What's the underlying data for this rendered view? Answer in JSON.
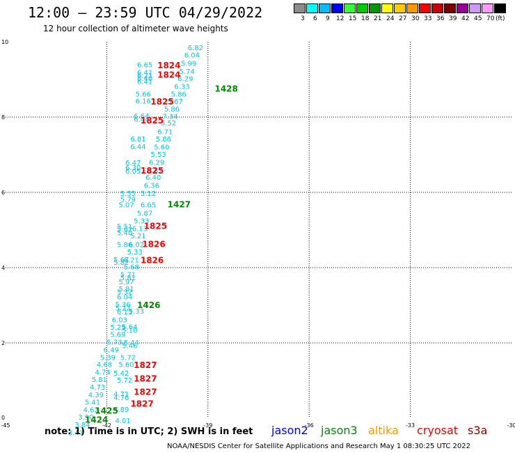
{
  "title": "12:00 — 23:59 UTC 04/29/2022",
  "subtitle": "12 hour collection of altimeter wave heights",
  "legend": {
    "unit": "(ft)",
    "bins": [
      {
        "label": "3",
        "color": "#8c8c8c"
      },
      {
        "label": "6",
        "color": "#00ffff"
      },
      {
        "label": "9",
        "color": "#00bfff"
      },
      {
        "label": "12",
        "color": "#0000ff"
      },
      {
        "label": "15",
        "color": "#33ff33"
      },
      {
        "label": "18",
        "color": "#00cc00"
      },
      {
        "label": "21",
        "color": "#009900"
      },
      {
        "label": "24",
        "color": "#ffff00"
      },
      {
        "label": "27",
        "color": "#ffcc00"
      },
      {
        "label": "30",
        "color": "#ff9900"
      },
      {
        "label": "33",
        "color": "#ff0000"
      },
      {
        "label": "36",
        "color": "#cc0000"
      },
      {
        "label": "39",
        "color": "#800000"
      },
      {
        "label": "42",
        "color": "#990099"
      },
      {
        "label": "45",
        "color": "#cc99ff"
      },
      {
        "label": "70",
        "color": "#ff99ff"
      },
      {
        "label": "",
        "color": "#000000"
      }
    ]
  },
  "axes": {
    "x_ticks": [
      "-45",
      "-42",
      "-39",
      "-36",
      "-33",
      "-30"
    ],
    "x_values": [
      -45,
      -42,
      -39,
      -36,
      -33,
      -30
    ],
    "y_ticks": [
      "0",
      "2",
      "4",
      "6",
      "8",
      "10"
    ],
    "y_values": [
      0,
      2,
      4,
      6,
      8,
      10
    ],
    "xlim": [
      -45,
      -30
    ],
    "ylim": [
      0,
      10
    ]
  },
  "colors": {
    "obs": "#00c8e0",
    "cryosat": "#ff0000",
    "jason3": "#008800"
  },
  "observations": [
    {
      "lon": -39.6,
      "lat": 9.78,
      "v": "6.82"
    },
    {
      "lon": -39.7,
      "lat": 9.58,
      "v": "6.04"
    },
    {
      "lon": -39.8,
      "lat": 9.36,
      "v": "5.99"
    },
    {
      "lon": -41.1,
      "lat": 9.32,
      "v": "6.65"
    },
    {
      "lon": -39.85,
      "lat": 9.15,
      "v": "5.74"
    },
    {
      "lon": -41.1,
      "lat": 9.12,
      "v": "6.41"
    },
    {
      "lon": -41.1,
      "lat": 9.04,
      "v": "6.21"
    },
    {
      "lon": -41.1,
      "lat": 8.96,
      "v": "6.40"
    },
    {
      "lon": -39.9,
      "lat": 8.95,
      "v": "6.29"
    },
    {
      "lon": -41.1,
      "lat": 8.88,
      "v": "6.41"
    },
    {
      "lon": -40.0,
      "lat": 8.75,
      "v": "6.33"
    },
    {
      "lon": -41.15,
      "lat": 8.55,
      "v": "5.66"
    },
    {
      "lon": -40.1,
      "lat": 8.55,
      "v": "5.86"
    },
    {
      "lon": -40.2,
      "lat": 8.35,
      "v": "5.67"
    },
    {
      "lon": -41.15,
      "lat": 8.36,
      "v": "6.16"
    },
    {
      "lon": -40.3,
      "lat": 8.15,
      "v": "5.86"
    },
    {
      "lon": -41.2,
      "lat": 7.96,
      "v": "6.64"
    },
    {
      "lon": -40.35,
      "lat": 7.95,
      "v": "7.34"
    },
    {
      "lon": -41.2,
      "lat": 7.88,
      "v": "6.44"
    },
    {
      "lon": -40.4,
      "lat": 7.78,
      "v": "5.52"
    },
    {
      "lon": -40.5,
      "lat": 7.55,
      "v": "6.71"
    },
    {
      "lon": -41.3,
      "lat": 7.35,
      "v": "6.81"
    },
    {
      "lon": -40.55,
      "lat": 7.35,
      "v": "5.86"
    },
    {
      "lon": -41.3,
      "lat": 7.15,
      "v": "6.44"
    },
    {
      "lon": -40.6,
      "lat": 7.14,
      "v": "5.60"
    },
    {
      "lon": -40.7,
      "lat": 6.94,
      "v": "5.53"
    },
    {
      "lon": -41.45,
      "lat": 6.72,
      "v": "6.47"
    },
    {
      "lon": -40.75,
      "lat": 6.73,
      "v": "6.29"
    },
    {
      "lon": -41.45,
      "lat": 6.59,
      "v": "6.30"
    },
    {
      "lon": -40.8,
      "lat": 6.53,
      "v": "5.87"
    },
    {
      "lon": -41.45,
      "lat": 6.5,
      "v": "6.05"
    },
    {
      "lon": -40.85,
      "lat": 6.33,
      "v": "6.40"
    },
    {
      "lon": -40.9,
      "lat": 6.12,
      "v": "6.36"
    },
    {
      "lon": -41.6,
      "lat": 5.91,
      "v": "5.55"
    },
    {
      "lon": -41.0,
      "lat": 5.91,
      "v": "5.12"
    },
    {
      "lon": -41.6,
      "lat": 5.75,
      "v": "5.79"
    },
    {
      "lon": -41.65,
      "lat": 5.6,
      "v": "5.07"
    },
    {
      "lon": -41.0,
      "lat": 5.6,
      "v": "6.65"
    },
    {
      "lon": -41.1,
      "lat": 5.38,
      "v": "5.87"
    },
    {
      "lon": -41.2,
      "lat": 5.18,
      "v": "5.33"
    },
    {
      "lon": -41.7,
      "lat": 5.03,
      "v": "5.51"
    },
    {
      "lon": -41.25,
      "lat": 4.97,
      "v": "6.13"
    },
    {
      "lon": -41.7,
      "lat": 4.95,
      "v": "5.62"
    },
    {
      "lon": -41.7,
      "lat": 4.86,
      "v": "5.40"
    },
    {
      "lon": -41.3,
      "lat": 4.78,
      "v": "5.21"
    },
    {
      "lon": -41.7,
      "lat": 4.55,
      "v": "5.86"
    },
    {
      "lon": -41.35,
      "lat": 4.55,
      "v": "6.02"
    },
    {
      "lon": -41.4,
      "lat": 4.35,
      "v": "5.33"
    },
    {
      "lon": -41.8,
      "lat": 4.15,
      "v": "5.67"
    },
    {
      "lon": -41.8,
      "lat": 4.07,
      "v": "5.82"
    },
    {
      "lon": -41.5,
      "lat": 4.14,
      "v": "6.21"
    },
    {
      "lon": -41.5,
      "lat": 3.95,
      "v": "5.68"
    },
    {
      "lon": -41.6,
      "lat": 3.75,
      "v": "5.71"
    },
    {
      "lon": -41.6,
      "lat": 3.67,
      "v": "5.81"
    },
    {
      "lon": -41.65,
      "lat": 3.56,
      "v": "5.97"
    },
    {
      "lon": -41.65,
      "lat": 3.37,
      "v": "5.81"
    },
    {
      "lon": -41.7,
      "lat": 3.29,
      "v": "5.32"
    },
    {
      "lon": -41.7,
      "lat": 3.16,
      "v": "6.04"
    },
    {
      "lon": -41.75,
      "lat": 2.95,
      "v": "5.36"
    },
    {
      "lon": -41.75,
      "lat": 2.86,
      "v": "5.22"
    },
    {
      "lon": -41.7,
      "lat": 2.76,
      "v": "6.13"
    },
    {
      "lon": -41.35,
      "lat": 2.78,
      "v": "5.33"
    },
    {
      "lon": -41.85,
      "lat": 2.55,
      "v": "6.03"
    },
    {
      "lon": -41.55,
      "lat": 2.36,
      "v": "5.64"
    },
    {
      "lon": -41.9,
      "lat": 2.35,
      "v": "5.25"
    },
    {
      "lon": -41.55,
      "lat": 2.27,
      "v": "5.10"
    },
    {
      "lon": -41.9,
      "lat": 2.16,
      "v": "5.69"
    },
    {
      "lon": -42.0,
      "lat": 1.95,
      "v": "5.73"
    },
    {
      "lon": -41.5,
      "lat": 1.94,
      "v": "5.44"
    },
    {
      "lon": -41.55,
      "lat": 1.86,
      "v": "5.46"
    },
    {
      "lon": -42.1,
      "lat": 1.75,
      "v": "6.49"
    },
    {
      "lon": -42.2,
      "lat": 1.55,
      "v": "5.39"
    },
    {
      "lon": -41.6,
      "lat": 1.55,
      "v": "5.72"
    },
    {
      "lon": -42.3,
      "lat": 1.36,
      "v": "4.68"
    },
    {
      "lon": -41.65,
      "lat": 1.36,
      "v": "5.60"
    },
    {
      "lon": -42.35,
      "lat": 1.16,
      "v": "4.74"
    },
    {
      "lon": -41.8,
      "lat": 1.13,
      "v": "5.42"
    },
    {
      "lon": -42.45,
      "lat": 0.96,
      "v": "5.81"
    },
    {
      "lon": -41.7,
      "lat": 0.94,
      "v": "5.72"
    },
    {
      "lon": -42.5,
      "lat": 0.76,
      "v": "4.73"
    },
    {
      "lon": -42.55,
      "lat": 0.56,
      "v": "4.39"
    },
    {
      "lon": -41.8,
      "lat": 0.57,
      "v": "4.71"
    },
    {
      "lon": -41.8,
      "lat": 0.48,
      "v": "4.76"
    },
    {
      "lon": -42.65,
      "lat": 0.36,
      "v": "5.41"
    },
    {
      "lon": -42.7,
      "lat": 0.16,
      "v": "4.62"
    },
    {
      "lon": -41.8,
      "lat": 0.17,
      "v": "4.89"
    },
    {
      "lon": -42.85,
      "lat": -0.04,
      "v": "3.90"
    },
    {
      "lon": -41.75,
      "lat": -0.13,
      "v": "4.01"
    },
    {
      "lon": -42.95,
      "lat": -0.24,
      "v": "3.84"
    },
    {
      "lon": -43.15,
      "lat": -0.45,
      "v": "3.47"
    }
  ],
  "track_labels": [
    {
      "lon": -40.5,
      "lat": 9.3,
      "t": "1824",
      "sat": "cryosat"
    },
    {
      "lon": -40.5,
      "lat": 9.05,
      "t": "1824",
      "sat": "cryosat"
    },
    {
      "lon": -38.8,
      "lat": 8.68,
      "t": "1428",
      "sat": "jason3"
    },
    {
      "lon": -40.7,
      "lat": 8.33,
      "t": "1825",
      "sat": "cryosat"
    },
    {
      "lon": -41.0,
      "lat": 7.83,
      "t": "1825",
      "sat": "cryosat"
    },
    {
      "lon": -41.0,
      "lat": 6.5,
      "t": "1825",
      "sat": "cryosat"
    },
    {
      "lon": -40.2,
      "lat": 5.6,
      "t": "1427",
      "sat": "jason3"
    },
    {
      "lon": -40.9,
      "lat": 5.03,
      "t": "1825",
      "sat": "cryosat"
    },
    {
      "lon": -40.95,
      "lat": 4.55,
      "t": "1826",
      "sat": "cryosat"
    },
    {
      "lon": -41.0,
      "lat": 4.12,
      "t": "1826",
      "sat": "cryosat"
    },
    {
      "lon": -41.1,
      "lat": 2.93,
      "t": "1426",
      "sat": "jason3"
    },
    {
      "lon": -41.2,
      "lat": 1.33,
      "t": "1827",
      "sat": "cryosat"
    },
    {
      "lon": -41.2,
      "lat": 0.97,
      "t": "1827",
      "sat": "cryosat"
    },
    {
      "lon": -41.2,
      "lat": 0.62,
      "t": "1827",
      "sat": "cryosat"
    },
    {
      "lon": -41.3,
      "lat": 0.31,
      "t": "1827",
      "sat": "cryosat"
    },
    {
      "lon": -42.35,
      "lat": 0.12,
      "t": "1425",
      "sat": "jason3"
    },
    {
      "lon": -42.65,
      "lat": -0.12,
      "t": "1424",
      "sat": "jason3"
    }
  ],
  "note": "note:  1) Time is in UTC; 2) SWH is in feet",
  "satellites": [
    {
      "name": "jason2",
      "color": "#0000dd"
    },
    {
      "name": "jason3",
      "color": "#008800"
    },
    {
      "name": "altika",
      "color": "#ff9900"
    },
    {
      "name": "cryosat",
      "color": "#ee0000"
    },
    {
      "name": "s3a",
      "color": "#880000"
    }
  ],
  "credit": "NOAA/NESDIS Center for Satellite Applications and Research    May  1 08:30:25 UTC 2022"
}
